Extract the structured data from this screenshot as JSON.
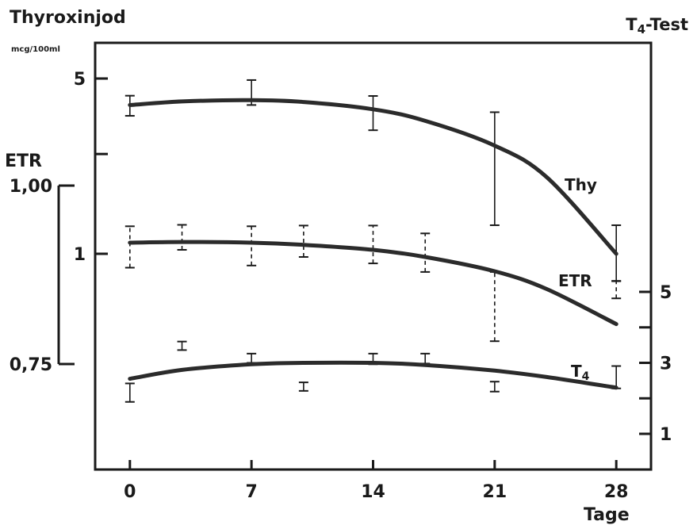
{
  "chart_data": {
    "type": "line",
    "title_left": "Thyroxinjod",
    "unit_left": "mcg/100ml",
    "title_right": "T4-Test",
    "title_right_base": "T",
    "title_right_sub": "4",
    "title_right_suffix": "-Test",
    "xlabel": "Tage",
    "xticks": [
      "0",
      "7",
      "14",
      "21",
      "28"
    ],
    "xlim": [
      -2,
      30
    ],
    "left_ticks": [
      "5",
      "1"
    ],
    "etr_label": "ETR",
    "etr_ticks": [
      "1,00",
      "0,75"
    ],
    "right_ticks": [
      "5",
      "3",
      "1"
    ],
    "grid": false,
    "colors": {
      "line": "#2b2b2b",
      "axis": "#1a1a1a"
    },
    "series": [
      {
        "name": "Thy",
        "label_base": "Thy",
        "label_sub": "",
        "scale": "left (Thyroxinjod, mcg/100ml)",
        "curve": {
          "x": [
            0,
            3,
            7,
            10,
            14,
            17,
            21,
            24,
            28
          ],
          "y": [
            3.92,
            4.05,
            4.1,
            4.03,
            3.77,
            3.39,
            2.7,
            2.02,
            1.0
          ]
        },
        "points": [
          {
            "x": 0,
            "mean": 3.92,
            "low": 3.55,
            "high": 4.27
          },
          {
            "x": 7,
            "mean": 4.1,
            "low": 3.92,
            "high": 4.93
          },
          {
            "x": 14,
            "mean": 3.77,
            "low": 3.11,
            "high": 4.26
          },
          {
            "x": 21,
            "mean": 2.7,
            "low": 1.3,
            "high": 3.67
          },
          {
            "x": 28,
            "mean": 1.0,
            "low": 0.78,
            "high": 1.3
          }
        ],
        "error_style": "solid"
      },
      {
        "name": "ETR",
        "label_base": "ETR",
        "label_sub": "",
        "scale": "ETR (bracket axis)",
        "curve": {
          "x": [
            0,
            3,
            7,
            10,
            14,
            17,
            21,
            24,
            28
          ],
          "y": [
            0.92,
            0.921,
            0.92,
            0.917,
            0.91,
            0.9,
            0.88,
            0.855,
            0.806
          ]
        },
        "points": [
          {
            "x": 0,
            "mean": 0.92,
            "low": 0.885,
            "high": 0.943
          },
          {
            "x": 3,
            "mean": 0.921,
            "low": 0.91,
            "high": 0.945
          },
          {
            "x": 7,
            "mean": 0.92,
            "low": 0.888,
            "high": 0.943
          },
          {
            "x": 10,
            "mean": 0.917,
            "low": 0.9,
            "high": 0.944
          },
          {
            "x": 14,
            "mean": 0.91,
            "low": 0.891,
            "high": 0.944
          },
          {
            "x": 17,
            "mean": 0.9,
            "low": 0.879,
            "high": 0.933
          },
          {
            "x": 21,
            "mean": 0.88,
            "low": 0.782,
            "high": 0.879
          },
          {
            "x": 28,
            "mean": 0.806,
            "low": 0.842,
            "high": 0.866
          }
        ],
        "error_style": "dashed"
      },
      {
        "name": "T4",
        "label_base": "T",
        "label_sub": "4",
        "scale": "right (T4-Test)",
        "curve": {
          "x": [
            0,
            3,
            7,
            10,
            14,
            17,
            21,
            24,
            28
          ],
          "y": [
            2.55,
            2.8,
            2.96,
            3.0,
            3.0,
            2.94,
            2.78,
            2.6,
            2.3
          ]
        },
        "points": [
          {
            "x": 0,
            "mean": 2.55,
            "low": 1.9,
            "high": 2.42
          },
          {
            "x": 3,
            "mean": 2.8,
            "low": 3.36,
            "high": 3.6
          },
          {
            "x": 7,
            "mean": 2.96,
            "low": 3.0,
            "high": 3.26
          },
          {
            "x": 10,
            "mean": 3.0,
            "low": 2.21,
            "high": 2.45
          },
          {
            "x": 14,
            "mean": 3.0,
            "low": 2.96,
            "high": 3.26
          },
          {
            "x": 17,
            "mean": 2.94,
            "low": 2.98,
            "high": 3.26
          },
          {
            "x": 21,
            "mean": 2.78,
            "low": 2.19,
            "high": 2.47
          },
          {
            "x": 28,
            "mean": 2.3,
            "low": 2.28,
            "high": 2.91
          }
        ],
        "error_style": "solid"
      }
    ]
  }
}
